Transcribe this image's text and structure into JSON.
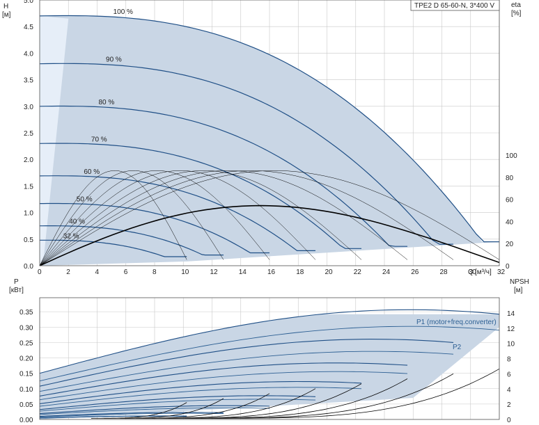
{
  "chart_data": [
    {
      "type": "line",
      "title": "TPE2 D 65-60-N, 3*400 V",
      "ylabel": "H",
      "yunit": "[м]",
      "xlabel": "Q",
      "xunit": "[м³/ч]",
      "y2label": "eta",
      "y2unit": "[%]",
      "xlim": [
        0,
        32
      ],
      "ylim": [
        0,
        5.0
      ],
      "y2lim": [
        0,
        100
      ],
      "xticks": [
        "0",
        "2",
        "4",
        "6",
        "8",
        "10",
        "12",
        "14",
        "16",
        "18",
        "20",
        "22",
        "24",
        "26",
        "28",
        "30",
        "32"
      ],
      "yticks": [
        "0.0",
        "0.5",
        "1.0",
        "1.5",
        "2.0",
        "2.5",
        "3.0",
        "3.5",
        "4.0",
        "4.5",
        "5.0"
      ],
      "y2ticks": [
        "0",
        "20",
        "40",
        "60",
        "80",
        "100"
      ],
      "speed_curves": [
        {
          "label": "100 %",
          "shutoff_head": 4.7,
          "max_flow": 32.0,
          "efficiency_peak": 86
        },
        {
          "label": "90 %",
          "shutoff_head": 3.8,
          "max_flow": 28.8,
          "efficiency_peak": 86
        },
        {
          "label": "80 %",
          "shutoff_head": 3.0,
          "max_flow": 25.6,
          "efficiency_peak": 86
        },
        {
          "label": "70 %",
          "shutoff_head": 2.3,
          "max_flow": 22.4,
          "efficiency_peak": 86
        },
        {
          "label": "60 %",
          "shutoff_head": 1.69,
          "max_flow": 19.2,
          "efficiency_peak": 86
        },
        {
          "label": "50 %",
          "shutoff_head": 1.17,
          "max_flow": 16.0,
          "efficiency_peak": 86
        },
        {
          "label": "40 %",
          "shutoff_head": 0.75,
          "max_flow": 12.8,
          "efficiency_peak": 86
        },
        {
          "label": "32 %",
          "shutoff_head": 0.48,
          "max_flow": 10.24,
          "efficiency_peak": 86
        }
      ]
    },
    {
      "type": "line",
      "ylabel": "P",
      "yunit": "[кВт]",
      "y2label": "NPSH",
      "y2unit": "[м]",
      "xlim": [
        0,
        32
      ],
      "ylim": [
        0,
        0.4
      ],
      "y2lim": [
        0,
        16
      ],
      "yticks": [
        "0.00",
        "0.05",
        "0.10",
        "0.15",
        "0.20",
        "0.25",
        "0.30",
        "0.35"
      ],
      "y2ticks": [
        "0",
        "2",
        "4",
        "6",
        "8",
        "10",
        "12",
        "14"
      ],
      "series_labels": [
        "P1 (motor+freq.converter)",
        "P2"
      ],
      "power_curves": [
        {
          "speed": "100 %",
          "p1_start": 0.15,
          "p1_peak": 0.342,
          "p2_start": 0.125,
          "p2_peak": 0.29
        },
        {
          "speed": "90 %",
          "p1_start": 0.108,
          "p1_peak": 0.25,
          "p2_start": 0.091,
          "p2_peak": 0.212
        },
        {
          "speed": "80 %",
          "p1_start": 0.076,
          "p1_peak": 0.176,
          "p2_start": 0.064,
          "p2_peak": 0.149
        },
        {
          "speed": "70 %",
          "p1_start": 0.051,
          "p1_peak": 0.118,
          "p2_start": 0.043,
          "p2_peak": 0.1
        },
        {
          "speed": "60 %",
          "p1_start": 0.032,
          "p1_peak": 0.074,
          "p2_start": 0.027,
          "p2_peak": 0.063
        },
        {
          "speed": "50 %",
          "p1_start": 0.019,
          "p1_peak": 0.043,
          "p2_start": 0.016,
          "p2_peak": 0.036
        },
        {
          "speed": "40 %",
          "p1_start": 0.01,
          "p1_peak": 0.022,
          "p2_start": 0.008,
          "p2_peak": 0.019
        },
        {
          "speed": "32 %",
          "p1_start": 0.005,
          "p1_peak": 0.011,
          "p2_start": 0.004,
          "p2_peak": 0.01
        }
      ],
      "npsh_peak": 6.5
    }
  ],
  "colors": {
    "region_fill": "#c9d6e5",
    "region_fill_light": "#e6eef8",
    "speed_curve": "#1f4f86",
    "efficiency_curve": "#000000",
    "grid": "#c8c8c8",
    "label_blue": "#2c5f93"
  }
}
